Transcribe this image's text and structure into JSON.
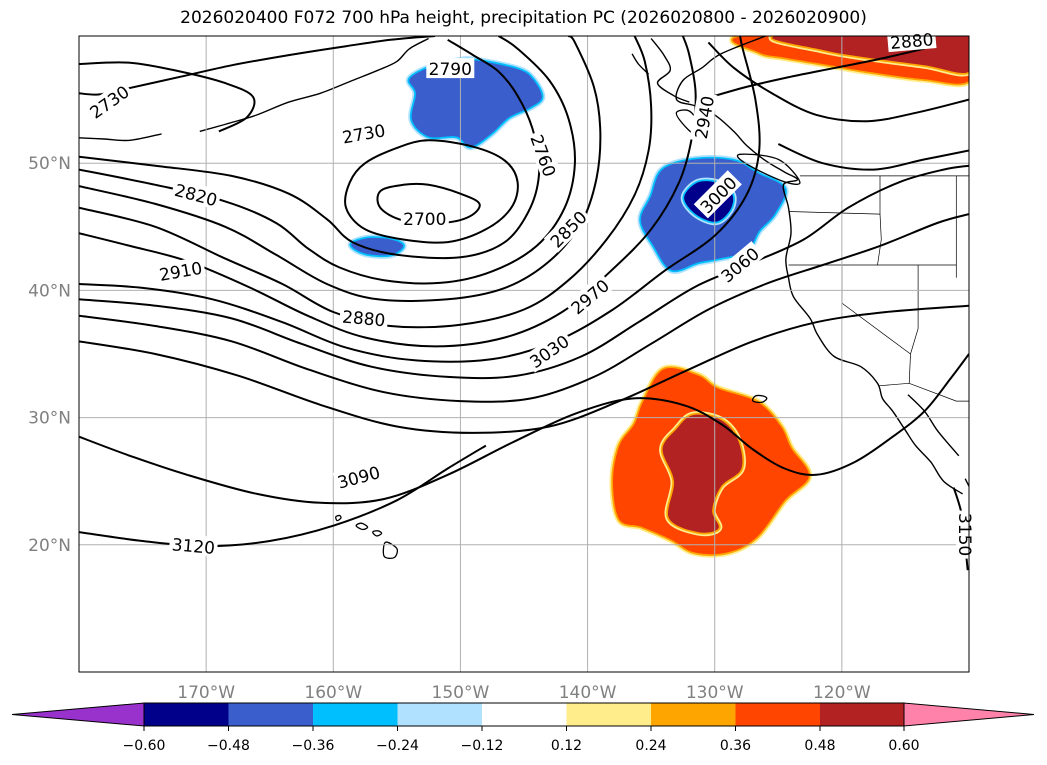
{
  "title": "2026020400 F072 700 hPa height, precipitation PC (2026020800 - 2026020900)",
  "map": {
    "lon_range": [
      180,
      110
    ],
    "lat_range": [
      10,
      60
    ],
    "lon_ticks": [
      {
        "lon": 170,
        "label": "170°W"
      },
      {
        "lon": 160,
        "label": "160°W"
      },
      {
        "lon": 150,
        "label": "150°W"
      },
      {
        "lon": 140,
        "label": "140°W"
      },
      {
        "lon": 130,
        "label": "130°W"
      },
      {
        "lon": 120,
        "label": "120°W"
      }
    ],
    "lat_ticks": [
      {
        "lat": 50,
        "label": "50°N"
      },
      {
        "lat": 40,
        "label": "40°N"
      },
      {
        "lat": 30,
        "label": "30°N"
      },
      {
        "lat": 20,
        "label": "20°N"
      }
    ],
    "grid": true,
    "contour_levels": [
      2700,
      2730,
      2760,
      2790,
      2820,
      2850,
      2880,
      2910,
      2940,
      2970,
      3000,
      3030,
      3060,
      3090,
      3120,
      3150
    ],
    "contour_labels": [
      {
        "text": "2730",
        "lon": 177.6,
        "lat": 54.8,
        "rot": -35
      },
      {
        "text": "2790",
        "lon": 150.8,
        "lat": 57.4,
        "rot": 0
      },
      {
        "text": "2730",
        "lon": 157.6,
        "lat": 52.3,
        "rot": -10
      },
      {
        "text": "2760",
        "lon": 143.5,
        "lat": 50.6,
        "rot": 70
      },
      {
        "text": "2820",
        "lon": 170.8,
        "lat": 47.5,
        "rot": 15
      },
      {
        "text": "2700",
        "lon": 152.8,
        "lat": 45.6,
        "rot": 0
      },
      {
        "text": "2850",
        "lon": 141.5,
        "lat": 44.8,
        "rot": -45
      },
      {
        "text": "2940",
        "lon": 130.8,
        "lat": 53.6,
        "rot": -80
      },
      {
        "text": "3000",
        "lon": 129.7,
        "lat": 47.5,
        "rot": -45
      },
      {
        "text": "2910",
        "lon": 172.0,
        "lat": 41.5,
        "rot": -10
      },
      {
        "text": "3060",
        "lon": 128.0,
        "lat": 42.0,
        "rot": -40
      },
      {
        "text": "2970",
        "lon": 139.8,
        "lat": 39.5,
        "rot": -40
      },
      {
        "text": "2880",
        "lon": 157.6,
        "lat": 37.8,
        "rot": 5
      },
      {
        "text": "3030",
        "lon": 143.0,
        "lat": 35.2,
        "rot": -35
      },
      {
        "text": "3090",
        "lon": 158.0,
        "lat": 25.3,
        "rot": -15
      },
      {
        "text": "3120",
        "lon": 171.0,
        "lat": 19.9,
        "rot": 5
      },
      {
        "text": "2880",
        "lon": 114.5,
        "lat": 59.6,
        "rot": -5
      },
      {
        "text": "3150",
        "lon": 110.3,
        "lat": 20.8,
        "rot": 90
      }
    ],
    "precip_areas": [
      {
        "value": -0.36,
        "color": "#3a5fcd",
        "outline": [
          [
            148.9,
            58.1
          ],
          [
            145.5,
            57.4
          ],
          [
            144.3,
            56.6
          ],
          [
            143.6,
            55.2
          ],
          [
            144.5,
            54.4
          ],
          [
            146.2,
            53.6
          ],
          [
            147.6,
            52.3
          ],
          [
            149.2,
            51.3
          ],
          [
            150.3,
            52.1
          ],
          [
            152.5,
            52.1
          ],
          [
            153.8,
            53.4
          ],
          [
            153.5,
            55.5
          ],
          [
            154.0,
            56.6
          ],
          [
            152.5,
            57.5
          ],
          [
            150.5,
            58.0
          ]
        ]
      },
      {
        "value": -0.36,
        "color": "#3a5fcd",
        "outline": [
          [
            157.3,
            44.1
          ],
          [
            155.5,
            44.0
          ],
          [
            154.5,
            43.5
          ],
          [
            155.5,
            42.8
          ],
          [
            157.5,
            42.9
          ],
          [
            158.6,
            43.6
          ]
        ]
      },
      {
        "value": -0.36,
        "color": "#3a5fcd",
        "outline": [
          [
            131.5,
            50.3
          ],
          [
            128.5,
            50.2
          ],
          [
            126.6,
            49.2
          ],
          [
            124.5,
            48.0
          ],
          [
            125.3,
            46.0
          ],
          [
            126.5,
            44.7
          ],
          [
            127.5,
            43.1
          ],
          [
            129.7,
            42.5
          ],
          [
            131.3,
            42.2
          ],
          [
            133.4,
            41.6
          ],
          [
            134.8,
            43.5
          ],
          [
            135.8,
            45.5
          ],
          [
            135.0,
            47.4
          ],
          [
            134.1,
            49.5
          ]
        ]
      },
      {
        "value": -0.48,
        "color": "#00008b",
        "outline": [
          [
            131.3,
            48.5
          ],
          [
            129.6,
            48.4
          ],
          [
            128.6,
            47.5
          ],
          [
            128.8,
            46.3
          ],
          [
            129.9,
            45.4
          ],
          [
            131.5,
            46.0
          ],
          [
            132.4,
            47.3
          ]
        ]
      },
      {
        "value": 0.36,
        "color": "#ff4500",
        "outline": [
          [
            134.0,
            33.8
          ],
          [
            131.3,
            33.3
          ],
          [
            129.8,
            32.3
          ],
          [
            126.6,
            31.2
          ],
          [
            124.8,
            29.3
          ],
          [
            124.0,
            27.6
          ],
          [
            122.6,
            25.4
          ],
          [
            124.5,
            23.5
          ],
          [
            126.7,
            20.6
          ],
          [
            129.0,
            19.4
          ],
          [
            131.6,
            19.4
          ],
          [
            133.4,
            20.4
          ],
          [
            135.7,
            21.4
          ],
          [
            137.5,
            22.0
          ],
          [
            138.0,
            25.0
          ],
          [
            137.5,
            27.8
          ],
          [
            136.3,
            29.5
          ],
          [
            135.6,
            31.3
          ]
        ]
      },
      {
        "value": 0.48,
        "color": "#b22222",
        "outline": [
          [
            131.7,
            30.2
          ],
          [
            129.5,
            29.8
          ],
          [
            128.2,
            28.3
          ],
          [
            127.9,
            26.0
          ],
          [
            129.5,
            24.6
          ],
          [
            130.2,
            22.7
          ],
          [
            129.7,
            21.3
          ],
          [
            131.3,
            21.0
          ],
          [
            133.6,
            22.1
          ],
          [
            133.2,
            25.0
          ],
          [
            134.1,
            27.5
          ],
          [
            133.0,
            29.1
          ]
        ]
      },
      {
        "value": 0.36,
        "color": "#ff4500",
        "outline": [
          [
            127.5,
            60.0
          ],
          [
            110.0,
            60.0
          ],
          [
            110.0,
            56.5
          ],
          [
            113.5,
            56.6
          ],
          [
            118.0,
            57.2
          ],
          [
            121.5,
            57.8
          ],
          [
            124.5,
            58.3
          ],
          [
            126.5,
            58.7
          ]
        ]
      },
      {
        "value": 0.48,
        "color": "#b22222",
        "outline": [
          [
            125.0,
            60.0
          ],
          [
            110.0,
            60.0
          ],
          [
            110.0,
            57.2
          ],
          [
            113.5,
            57.7
          ],
          [
            118.0,
            58.3
          ],
          [
            121.5,
            58.9
          ]
        ]
      }
    ]
  },
  "colorbar": {
    "colors": [
      "#9932cc",
      "#00008b",
      "#3a5fcd",
      "#00bfff",
      "#b0e2ff",
      "#ffffff",
      "#ffec8b",
      "#ffa500",
      "#ff4500",
      "#b22222",
      "#ff82ab"
    ],
    "ticks": [
      "−0.60",
      "−0.48",
      "−0.36",
      "−0.24",
      "−0.12",
      "0.12",
      "0.24",
      "0.36",
      "0.48",
      "0.60"
    ]
  }
}
